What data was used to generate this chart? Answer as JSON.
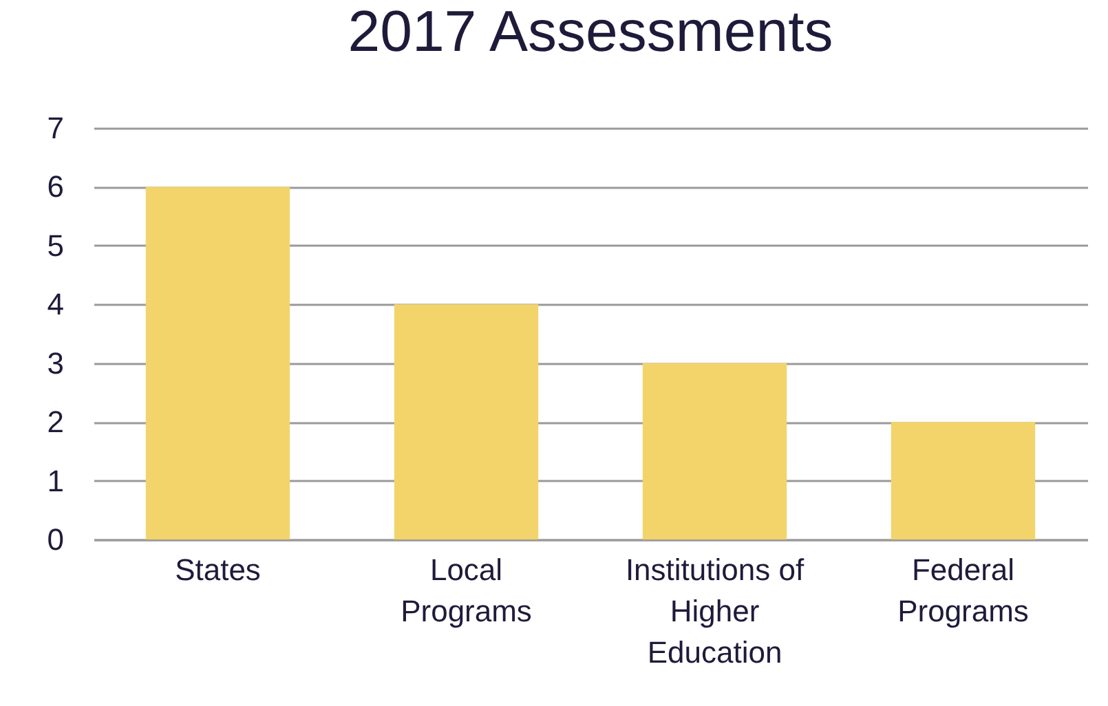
{
  "chart_data": {
    "type": "bar",
    "title": "2017 Assessments",
    "categories": [
      "States",
      "Local Programs",
      "Institutions of Higher Education",
      "Federal Programs"
    ],
    "values": [
      6,
      4,
      3,
      2
    ],
    "color": "#f2d46b",
    "ylim": [
      0,
      7
    ],
    "yticks": [
      0,
      1,
      2,
      3,
      4,
      5,
      6,
      7
    ],
    "grid": "y"
  }
}
